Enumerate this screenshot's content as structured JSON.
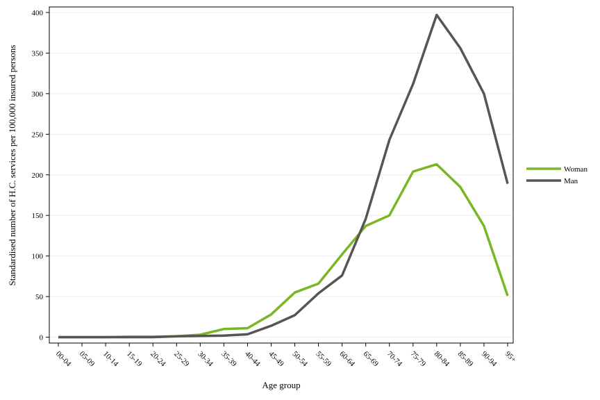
{
  "chart_data": {
    "type": "line",
    "title": "",
    "xlabel": "Age group",
    "ylabel": "Standardised number of H.C. services per 100,000 insured persons",
    "categories": [
      "00-04",
      "05-09",
      "10-14",
      "15-19",
      "20-24",
      "25-29",
      "30-34",
      "35-39",
      "40-44",
      "45-49",
      "50-54",
      "55-59",
      "60-64",
      "65-69",
      "70-74",
      "75-79",
      "80-84",
      "85-89",
      "90-94",
      "95+"
    ],
    "yticks": [
      "0",
      "50",
      "100",
      "150",
      "200",
      "250",
      "300",
      "350",
      "400"
    ],
    "ylim": [
      -8,
      400
    ],
    "grid": "horizontal",
    "legend_position": "right",
    "series": [
      {
        "name": "Woman",
        "color": "#7ab623",
        "values": [
          0,
          0,
          0,
          0.5,
          0.5,
          1,
          3,
          10,
          11,
          28,
          55,
          66,
          102,
          137,
          150,
          204,
          213,
          185,
          137,
          51
        ]
      },
      {
        "name": "Man",
        "color": "#555555",
        "values": [
          0,
          0,
          0,
          0,
          0,
          1,
          1.5,
          2,
          3.5,
          14,
          27,
          54,
          76,
          146,
          243,
          312,
          397,
          356,
          300,
          189
        ]
      }
    ]
  }
}
